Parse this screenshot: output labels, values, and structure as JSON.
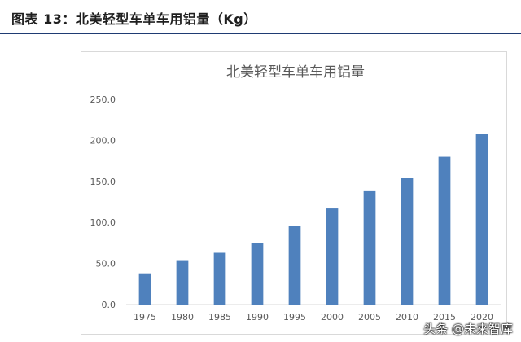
{
  "figure": {
    "title": "图表 13：北美轻型车单车用铝量（Kg）"
  },
  "watermark": "头条 @未来智库",
  "colors": {
    "bar": "#4f81bd",
    "axis": "#d9d9d9",
    "text": "#595959",
    "rule": "#1f3b73"
  },
  "chart_data": {
    "type": "bar",
    "title": "北美轻型车单车用铝量",
    "xlabel": "",
    "ylabel": "",
    "categories": [
      "1975",
      "1980",
      "1985",
      "1990",
      "1995",
      "2000",
      "2005",
      "2010",
      "2015",
      "2020"
    ],
    "values": [
      38,
      54,
      63,
      75,
      96,
      117,
      139,
      154,
      180,
      208
    ],
    "ylim": [
      0,
      250
    ],
    "yticks": [
      0,
      50,
      100,
      150,
      200,
      250
    ],
    "ytick_labels": [
      "0.0",
      "50.0",
      "100.0",
      "150.0",
      "200.0",
      "250.0"
    ],
    "grid": false,
    "legend": "none"
  }
}
